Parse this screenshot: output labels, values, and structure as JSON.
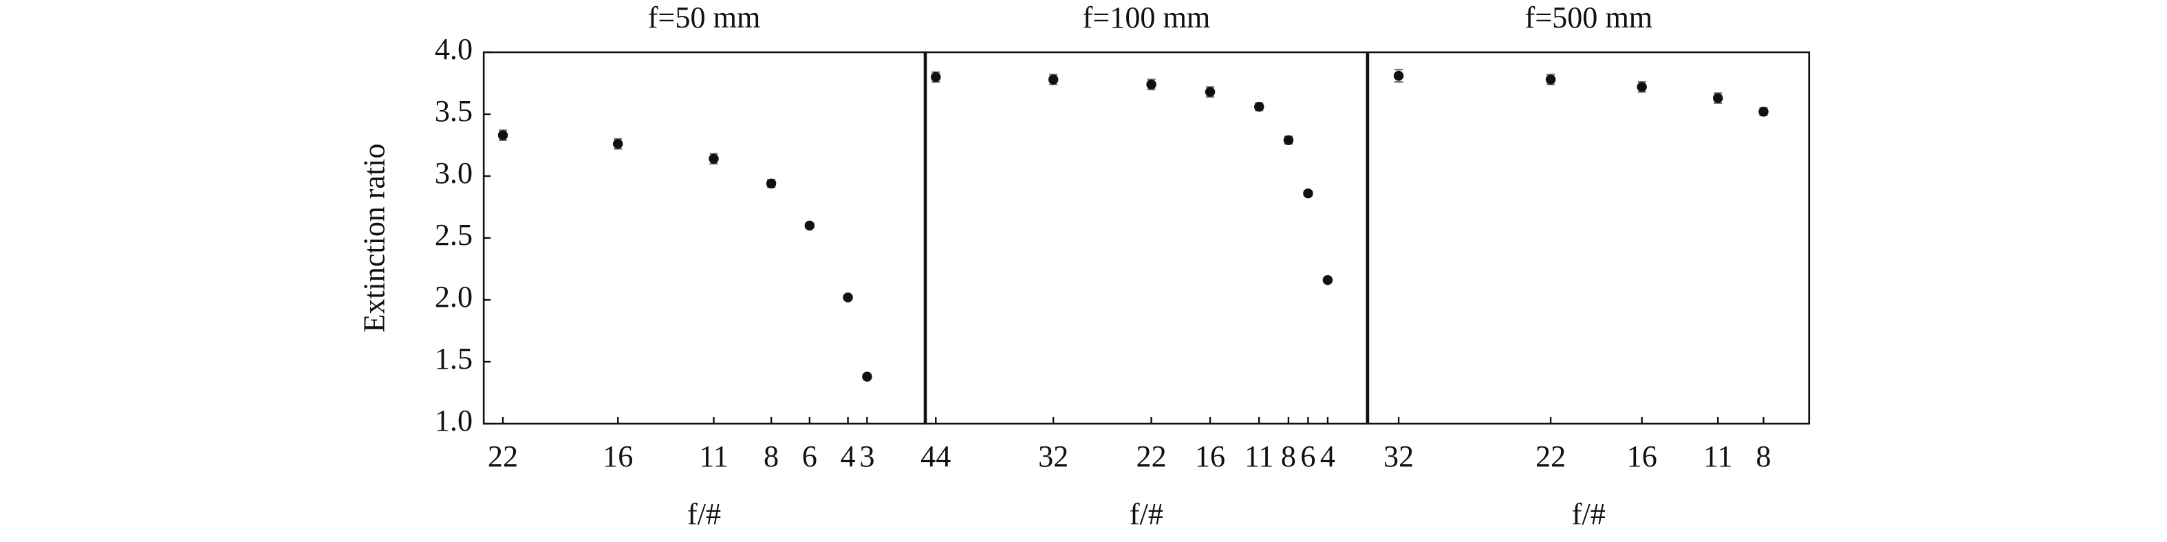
{
  "chart_data": [
    {
      "type": "scatter",
      "title": "f=50 mm",
      "xlabel": "f/#",
      "ylabel": "Extinction ratio",
      "x": [
        22,
        16,
        11,
        8,
        6,
        4,
        3
      ],
      "values": [
        3.33,
        3.26,
        3.14,
        2.94,
        2.6,
        2.02,
        1.38
      ],
      "errors": [
        0.04,
        0.04,
        0.04,
        0.03,
        0.02,
        0.02,
        0.02
      ],
      "xlim": [
        23,
        0
      ],
      "xticks": [
        22,
        16,
        11,
        8,
        6,
        4,
        3
      ],
      "ylim": [
        1,
        4
      ],
      "yticks": [
        {
          "value": 1,
          "label": "1.0"
        },
        {
          "value": 1.5,
          "label": "1.5"
        },
        {
          "value": 2,
          "label": "2.0"
        },
        {
          "value": 2.5,
          "label": "2.5"
        },
        {
          "value": 3,
          "label": "3.0"
        },
        {
          "value": 3.5,
          "label": "3.5"
        },
        {
          "value": 4,
          "label": "4.0"
        }
      ],
      "color": "#111111"
    },
    {
      "type": "scatter",
      "title": "f=100 mm",
      "xlabel": "f/#",
      "x": [
        44,
        32,
        22,
        16,
        11,
        8,
        6,
        4
      ],
      "values": [
        3.8,
        3.78,
        3.74,
        3.68,
        3.56,
        3.29,
        2.86,
        2.16
      ],
      "errors": [
        0.04,
        0.04,
        0.04,
        0.04,
        0.03,
        0.03,
        0.02,
        0.02
      ],
      "xlim": [
        45,
        0
      ],
      "xticks": [
        44,
        32,
        22,
        16,
        11,
        8,
        6,
        4
      ],
      "ylim": [
        1,
        4
      ],
      "color": "#111111"
    },
    {
      "type": "scatter",
      "title": "f=500 mm",
      "xlabel": "f/#",
      "x": [
        32,
        22,
        16,
        11,
        8
      ],
      "values": [
        3.81,
        3.78,
        3.72,
        3.63,
        3.52
      ],
      "errors": [
        0.05,
        0.04,
        0.04,
        0.04,
        0.03
      ],
      "xlim": [
        34,
        5
      ],
      "xticks": [
        32,
        22,
        16,
        11,
        8
      ],
      "ylim": [
        1,
        4
      ],
      "color": "#111111"
    }
  ]
}
